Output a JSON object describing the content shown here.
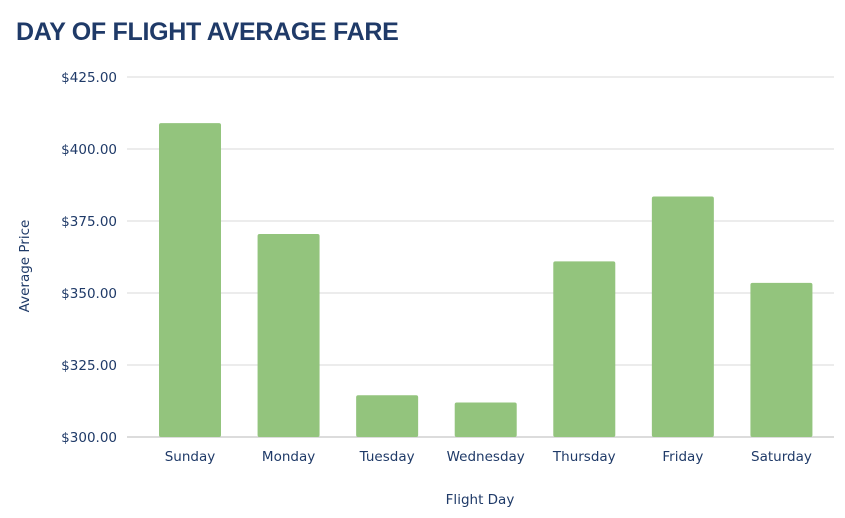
{
  "chart_data": {
    "type": "bar",
    "title": "DAY OF FLIGHT AVERAGE FARE",
    "xlabel": "Flight Day",
    "ylabel": "Average Price",
    "categories": [
      "Sunday",
      "Monday",
      "Tuesday",
      "Wednesday",
      "Thursday",
      "Friday",
      "Saturday"
    ],
    "values": [
      409,
      370.5,
      314.5,
      312,
      361,
      383.5,
      353.5
    ],
    "ylim": [
      300,
      425
    ],
    "yticks": [
      "$300.00",
      "$325.00",
      "$350.00",
      "$375.00",
      "$400.00",
      "$425.00"
    ],
    "ytick_values": [
      300,
      325,
      350,
      375,
      400,
      425
    ],
    "grid": true,
    "legend": "none",
    "bar_color": "#93c47d",
    "text_color": "#1f3a68"
  }
}
